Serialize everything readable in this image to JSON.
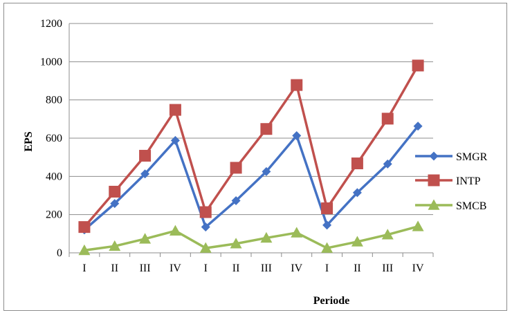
{
  "chart_data": {
    "type": "line",
    "title": "",
    "xlabel": "Periode",
    "ylabel": "EPS",
    "ylim": [
      0,
      1200
    ],
    "yticks": [
      0,
      200,
      400,
      600,
      800,
      1000,
      1200
    ],
    "grid": "horizontal",
    "legend_position": "right",
    "categories": [
      "I",
      "II",
      "III",
      "IV",
      "I",
      "II",
      "III",
      "IV",
      "I",
      "II",
      "III",
      "IV"
    ],
    "series": [
      {
        "name": "SMGR",
        "color": "#4472C4",
        "marker": "diamond",
        "values": [
          120,
          258,
          413,
          588,
          135,
          273,
          425,
          613,
          145,
          315,
          465,
          663
        ]
      },
      {
        "name": "INTP",
        "color": "#C0504D",
        "marker": "square",
        "values": [
          135,
          320,
          508,
          748,
          213,
          445,
          648,
          878,
          233,
          468,
          702,
          980
        ]
      },
      {
        "name": "SMCB",
        "color": "#9BBB59",
        "marker": "triangle",
        "values": [
          13,
          35,
          73,
          115,
          25,
          48,
          78,
          105,
          25,
          58,
          95,
          138
        ]
      }
    ]
  }
}
